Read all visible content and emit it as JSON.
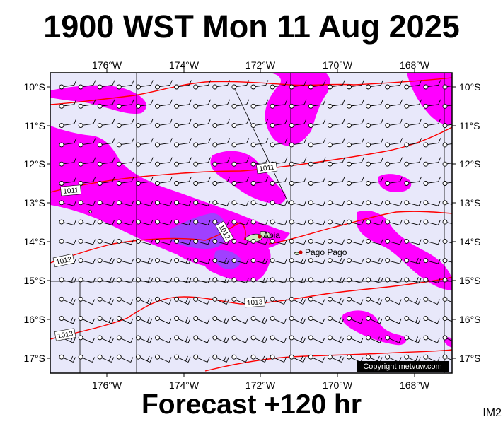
{
  "title": "1900 WST Mon 11 Aug 2025",
  "forecast_label": "Forecast +120 hr",
  "model_tag": "IM2",
  "copyright": "Copyright metvuw.com",
  "longitude_labels": [
    "176°W",
    "174°W",
    "172°W",
    "170°W",
    "168°W"
  ],
  "latitude_labels": [
    "10°S",
    "11°S",
    "12°S",
    "13°S",
    "14°S",
    "15°S",
    "16°S",
    "17°S"
  ],
  "places": [
    {
      "name": "Apia"
    },
    {
      "name": "Pago Pago"
    }
  ],
  "isobar_labels": [
    "1011",
    "1011",
    "1012",
    "1012",
    "1013",
    "1013"
  ],
  "colors": {
    "ocean": "#e8e8fa",
    "rain_light": "#ff00ff",
    "rain_heavy": "#a040ff",
    "isobar": "#ff0000",
    "land": "#cfe8c0",
    "place_marker": "#cc0000"
  },
  "wind_barb_symbol": "station-circle-with-barb"
}
